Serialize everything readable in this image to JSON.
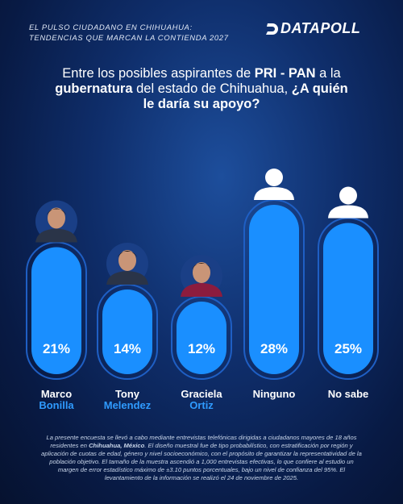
{
  "header": {
    "line1": "EL PULSO CIUDADANO EN CHIHUAHUA:",
    "line2": "TENDENCIAS QUE MARCAN LA CONTIENDA 2027"
  },
  "brand": {
    "name": "DATAPOLL"
  },
  "question": {
    "part1": "Entre los posibles aspirantes de ",
    "part2": "PRI - PAN",
    "part3": " a la ",
    "part4": "gubernatura",
    "part5": " del estado de Chihuahua, ",
    "part6": "¿A quién le daría su apoyo?"
  },
  "chart_data": {
    "type": "bar",
    "categories": [
      "Marco Bonilla",
      "Tony Melendez",
      "Graciela Ortiz",
      "Ninguno",
      "No sabe"
    ],
    "values": [
      21,
      14,
      12,
      28,
      25
    ],
    "value_labels": [
      "21%",
      "14%",
      "12%",
      "28%",
      "25%"
    ],
    "ylim": [
      0,
      28
    ],
    "title": "",
    "xlabel": "",
    "ylabel": ""
  },
  "candidates": [
    {
      "first": "Marco",
      "last": "Bonilla",
      "icon": "candidate-photo"
    },
    {
      "first": "Tony",
      "last": "Melendez",
      "icon": "candidate-photo"
    },
    {
      "first": "Graciela",
      "last": "Ortiz",
      "icon": "candidate-photo"
    },
    {
      "first": "Ninguno",
      "last": "",
      "icon": "user-silhouette-icon"
    },
    {
      "first": "No sabe",
      "last": "",
      "icon": "user-silhouette-icon"
    }
  ],
  "colors": {
    "bar_fill": "#1a8fff",
    "bar_outline": "#1f5fc4",
    "accent_text": "#2f9bff",
    "background": "#0f2e6b"
  },
  "methodology": {
    "text1": "La presente encuesta se llevó a cabo mediante entrevistas telefónicas dirigidas a ciudadanos mayores de 18 años residentes en ",
    "place": "Chihuahua, México",
    "text2": ". El diseño muestral fue de tipo probabilístico, con estratificación por región y aplicación de cuotas de edad, género y nivel socioeconómico, con el propósito de garantizar la representatividad de la población objetivo. El tamaño de la muestra ascendió a 1,000 entrevistas efectivas, lo que confiere al estudio un margen de error estadístico máximo de ±3.10 puntos porcentuales, bajo un nivel de confianza del 95%. El levantamiento de la información se realizó el 24 de noviembre de 2025."
  }
}
